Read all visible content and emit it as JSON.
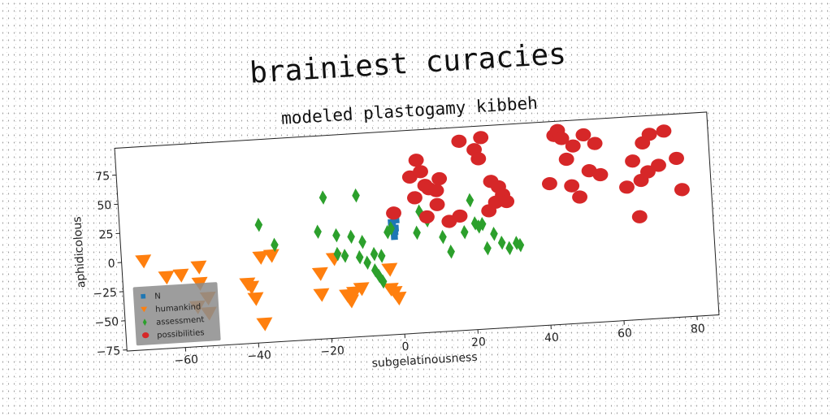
{
  "chart_data": {
    "type": "scatter",
    "suptitle": "brainiest curacies",
    "title": "modeled plastogamy kibbeh",
    "xlabel": "subgelatinousness",
    "ylabel": "aphidicolous",
    "xlim": [
      -76,
      86
    ],
    "ylim": [
      -76,
      98
    ],
    "xticks": [
      -60,
      -40,
      -20,
      0,
      20,
      40,
      60,
      80
    ],
    "yticks": [
      -75,
      -50,
      -25,
      0,
      25,
      50,
      75
    ],
    "grid": false,
    "legend_position": "lower-left",
    "series": [
      {
        "name": "N",
        "marker": "square",
        "color": "#1f77b4",
        "points": [
          [
            -1.5,
            18
          ],
          [
            -1.0,
            12
          ],
          [
            -0.5,
            22
          ],
          [
            -1.2,
            8
          ],
          [
            -0.8,
            15
          ],
          [
            -1.8,
            20
          ]
        ]
      },
      {
        "name": "humankind",
        "marker": "triangle-down",
        "color": "#ff7f0e",
        "points": [
          [
            -70,
            0
          ],
          [
            -64,
            -15
          ],
          [
            -60,
            -14
          ],
          [
            -55,
            -8
          ],
          [
            -55,
            -22
          ],
          [
            -53,
            -35
          ],
          [
            -56,
            -42
          ],
          [
            -53,
            -48
          ],
          [
            -42,
            -25
          ],
          [
            -41,
            -28
          ],
          [
            -38,
            -60
          ],
          [
            -38,
            -3
          ],
          [
            -35,
            -2
          ],
          [
            -40,
            -38
          ],
          [
            -22,
            -20
          ],
          [
            -22,
            -38
          ],
          [
            -18,
            -8
          ],
          [
            -15,
            -40
          ],
          [
            -14,
            -45
          ],
          [
            -13,
            -38
          ],
          [
            -11,
            -35
          ],
          [
            -3,
            -37
          ],
          [
            -2,
            -40
          ],
          [
            -1,
            -45
          ],
          [
            -3,
            -20
          ]
        ]
      },
      {
        "name": "assessment",
        "marker": "diamond",
        "color": "#2ca02c",
        "points": [
          [
            -38,
            25
          ],
          [
            -34,
            7
          ],
          [
            -22,
            16
          ],
          [
            -20,
            45
          ],
          [
            -17,
            12
          ],
          [
            -17,
            -4
          ],
          [
            -15,
            -6
          ],
          [
            -13,
            10
          ],
          [
            -11,
            45
          ],
          [
            -11,
            -8
          ],
          [
            -10,
            5
          ],
          [
            -9,
            -13
          ],
          [
            -7,
            -6
          ],
          [
            -7,
            -20
          ],
          [
            -6,
            -25
          ],
          [
            -5,
            -30
          ],
          [
            -5,
            -8
          ],
          [
            -3,
            12
          ],
          [
            -2,
            15
          ],
          [
            5,
            10
          ],
          [
            6,
            28
          ],
          [
            8,
            20
          ],
          [
            12,
            5
          ],
          [
            14,
            -8
          ],
          [
            18,
            8
          ],
          [
            20,
            35
          ],
          [
            21,
            15
          ],
          [
            22,
            12
          ],
          [
            23,
            14
          ],
          [
            24,
            -7
          ],
          [
            26,
            5
          ],
          [
            28,
            -3
          ],
          [
            30,
            -8
          ],
          [
            32,
            -4
          ],
          [
            33,
            -6
          ]
        ]
      },
      {
        "name": "possibilities",
        "marker": "circle",
        "color": "#d62728",
        "points": [
          [
            -1,
            28
          ],
          [
            5,
            40
          ],
          [
            4,
            58
          ],
          [
            6,
            72
          ],
          [
            7,
            62
          ],
          [
            8,
            50
          ],
          [
            9,
            47
          ],
          [
            11,
            45
          ],
          [
            12,
            55
          ],
          [
            8,
            23
          ],
          [
            11,
            33
          ],
          [
            14,
            18
          ],
          [
            17,
            22
          ],
          [
            18,
            86
          ],
          [
            22,
            78
          ],
          [
            23,
            70
          ],
          [
            24,
            88
          ],
          [
            25,
            25
          ],
          [
            26,
            50
          ],
          [
            27,
            32
          ],
          [
            28,
            45
          ],
          [
            29,
            38
          ],
          [
            30,
            32
          ],
          [
            42,
            45
          ],
          [
            44,
            86
          ],
          [
            45,
            90
          ],
          [
            46,
            83
          ],
          [
            47,
            65
          ],
          [
            48,
            42
          ],
          [
            49,
            76
          ],
          [
            50,
            32
          ],
          [
            52,
            85
          ],
          [
            53,
            54
          ],
          [
            55,
            77
          ],
          [
            56,
            50
          ],
          [
            63,
            38
          ],
          [
            65,
            60
          ],
          [
            66,
            12
          ],
          [
            67,
            43
          ],
          [
            68,
            75
          ],
          [
            69,
            50
          ],
          [
            70,
            82
          ],
          [
            72,
            55
          ],
          [
            74,
            84
          ],
          [
            77,
            60
          ],
          [
            78,
            33
          ]
        ]
      }
    ]
  }
}
